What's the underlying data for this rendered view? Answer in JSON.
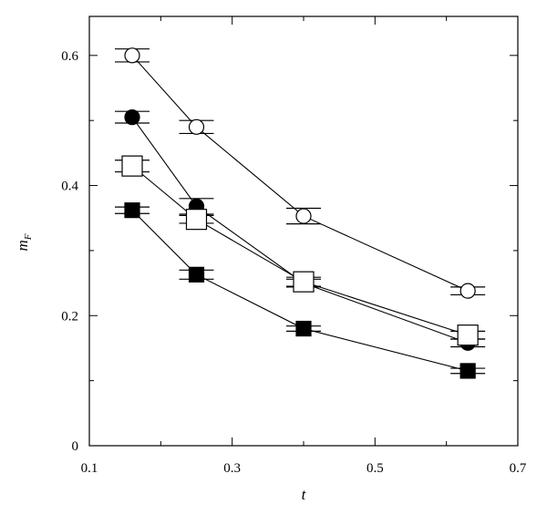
{
  "chart_data": {
    "type": "scatter",
    "xlabel": "t",
    "ylabel_main": "m",
    "ylabel_sub": "F",
    "xlim": [
      0.1,
      0.7
    ],
    "ylim": [
      0,
      0.66
    ],
    "x_ticks": [
      0.1,
      0.3,
      0.5,
      0.7
    ],
    "x_tick_labels": [
      "0.1",
      "0.3",
      "0.5",
      "0.7"
    ],
    "x_minor_ticks": [
      0.2,
      0.4,
      0.6
    ],
    "y_ticks": [
      0,
      0.2,
      0.4,
      0.6
    ],
    "y_tick_labels": [
      "0",
      "0.2",
      "0.4",
      "0.6"
    ],
    "y_minor_ticks": [
      0.1,
      0.3,
      0.5
    ],
    "grid": false,
    "legend": "none",
    "series": [
      {
        "marker": "open-circle",
        "x": [
          0.16,
          0.25,
          0.4,
          0.63
        ],
        "y": [
          0.6,
          0.49,
          0.353,
          0.238
        ],
        "err": [
          0.01,
          0.01,
          0.012,
          0.006
        ]
      },
      {
        "marker": "filled-circle",
        "x": [
          0.16,
          0.25,
          0.4,
          0.63
        ],
        "y": [
          0.505,
          0.368,
          0.25,
          0.158
        ],
        "err": [
          0.009,
          0.012,
          0.006,
          0.006
        ]
      },
      {
        "marker": "open-square",
        "x": [
          0.16,
          0.25,
          0.4,
          0.63
        ],
        "y": [
          0.43,
          0.348,
          0.252,
          0.17
        ],
        "err": [
          0.009,
          0.006,
          0.007,
          0.006
        ]
      },
      {
        "marker": "filled-square",
        "x": [
          0.16,
          0.25,
          0.4,
          0.63
        ],
        "y": [
          0.362,
          0.263,
          0.18,
          0.115
        ],
        "err": [
          0.005,
          0.007,
          0.004,
          0.004
        ]
      }
    ]
  }
}
